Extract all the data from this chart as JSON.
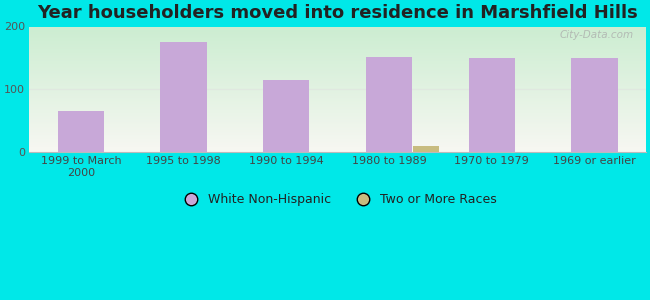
{
  "title": "Year householders moved into residence in Marshfield Hills",
  "categories": [
    "1999 to March\n2000",
    "1995 to 1998",
    "1990 to 1994",
    "1980 to 1989",
    "1970 to 1979",
    "1969 or earlier"
  ],
  "white_non_hispanic": [
    65,
    176,
    115,
    152,
    150,
    150
  ],
  "two_or_more_races": [
    0,
    0,
    0,
    10,
    0,
    0
  ],
  "bar_color_white": "#c8a8d8",
  "bar_color_two": "#c8bc80",
  "background_outer": "#00e8e8",
  "background_plot_top_left": "#c8e8c8",
  "background_plot_bottom_right": "#f8f8f4",
  "ylim": [
    0,
    200
  ],
  "yticks": [
    0,
    100,
    200
  ],
  "bar_width": 0.45,
  "two_bar_width": 0.25,
  "title_fontsize": 13,
  "tick_fontsize": 8,
  "legend_fontsize": 9,
  "watermark": "City-Data.com",
  "grid_color": "#e0e8e0",
  "spine_color": "#bbbbbb"
}
